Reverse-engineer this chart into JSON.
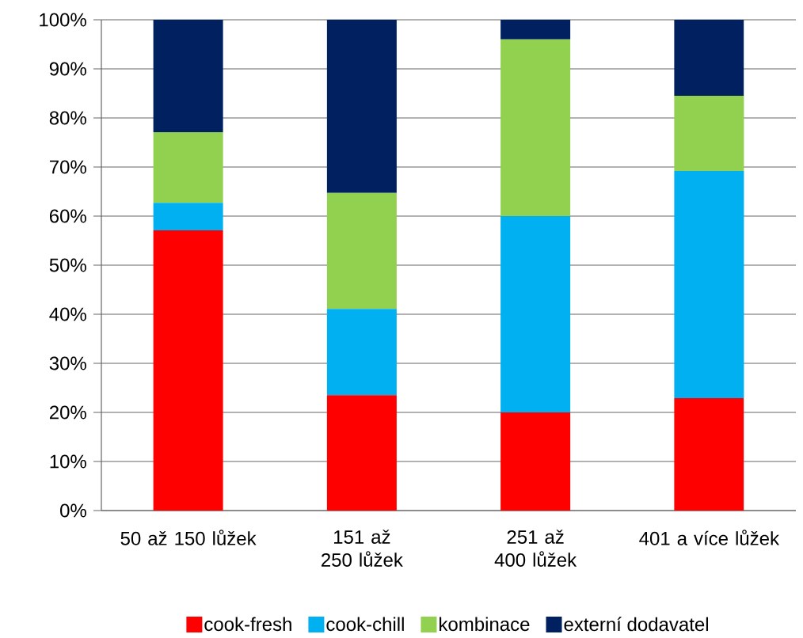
{
  "chart_data": {
    "type": "bar",
    "stacked": true,
    "categories": [
      "50 až 150 lůžek",
      "151 až 250 lůžek",
      "251 až 400 lůžek",
      "401 a více lůžek"
    ],
    "series": [
      {
        "name": "cook-fresh",
        "color": "#ff0000",
        "values": [
          57.1,
          23.5,
          20,
          22.9
        ]
      },
      {
        "name": "cook-chill",
        "color": "#00b0f0",
        "values": [
          5.6,
          17.6,
          40,
          46.3
        ]
      },
      {
        "name": "kombinace",
        "color": "#92d050",
        "values": [
          14.4,
          23.6,
          36,
          15.3
        ]
      },
      {
        "name": "externí dodavatel",
        "color": "#002060",
        "values": [
          22.9,
          35.3,
          4,
          15.5
        ]
      }
    ],
    "ylim": [
      0,
      100
    ],
    "yticks": [
      {
        "value": 0,
        "label": "0%"
      },
      {
        "value": 10,
        "label": "10%"
      },
      {
        "value": 20,
        "label": "20%"
      },
      {
        "value": 30,
        "label": "30%"
      },
      {
        "value": 40,
        "label": "40%"
      },
      {
        "value": 50,
        "label": "50%"
      },
      {
        "value": 60,
        "label": "60%"
      },
      {
        "value": 70,
        "label": "70%"
      },
      {
        "value": 80,
        "label": "80%"
      },
      {
        "value": 90,
        "label": "90%"
      },
      {
        "value": 100,
        "label": "100%"
      }
    ],
    "grid": "y",
    "legend": "bottom"
  }
}
